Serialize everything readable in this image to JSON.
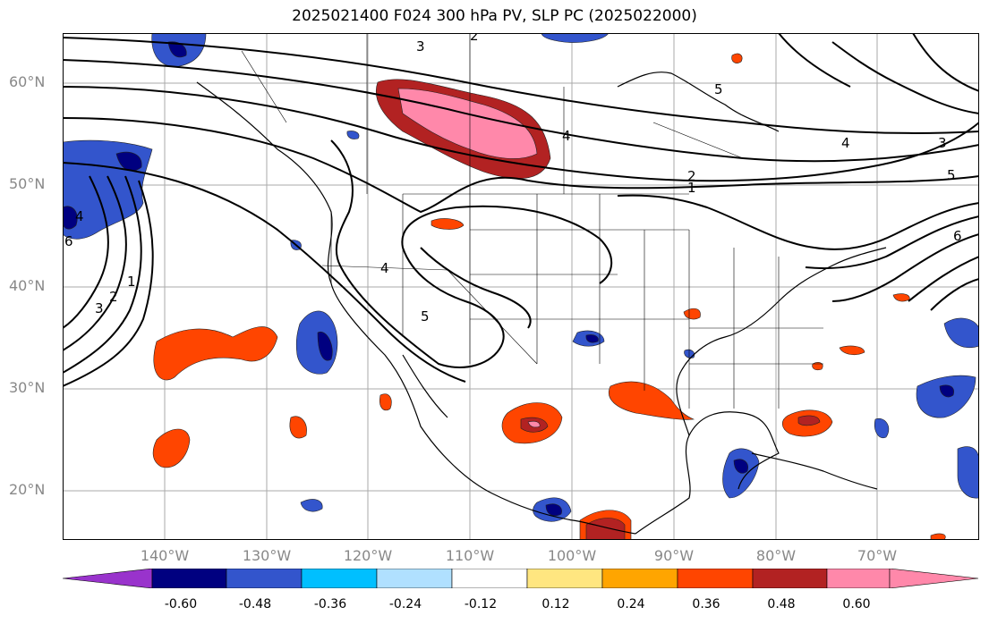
{
  "title": "2025021400 F024 300 hPa PV, SLP PC (2025022000)",
  "latitude_labels": [
    "60°N",
    "50°N",
    "40°N",
    "30°N",
    "20°N"
  ],
  "longitude_labels": [
    "140°W",
    "130°W",
    "120°W",
    "110°W",
    "100°W",
    "90°W",
    "80°W",
    "70°W"
  ],
  "colorbar": {
    "tick_labels": [
      "-0.60",
      "-0.48",
      "-0.36",
      "-0.24",
      "-0.12",
      "0.12",
      "0.24",
      "0.36",
      "0.48",
      "0.60"
    ],
    "colors": [
      "#9933cc",
      "#000080",
      "#3355cc",
      "#00bfff",
      "#b0e0ff",
      "#ffffff",
      "#ffe680",
      "#ffa500",
      "#ff4500",
      "#b22222",
      "#ff88aa"
    ]
  },
  "contour_labels": [
    "3",
    "2",
    "5",
    "4",
    "2",
    "1",
    "3",
    "5",
    "6",
    "4",
    "2",
    "3",
    "1",
    "4",
    "5",
    "6",
    "4"
  ]
}
